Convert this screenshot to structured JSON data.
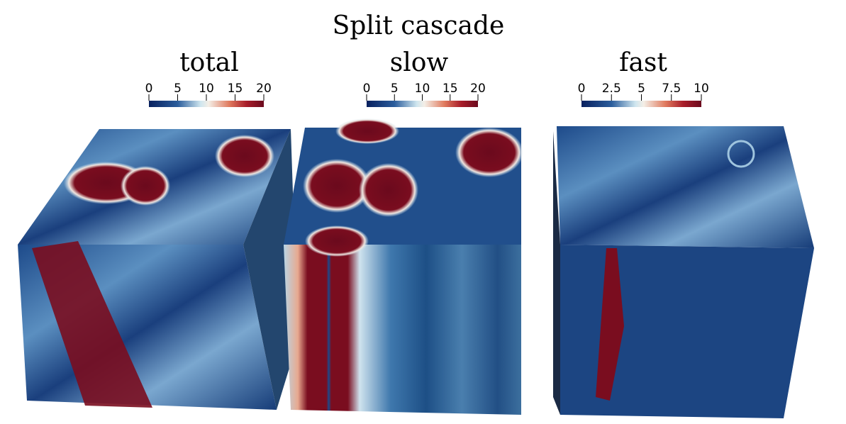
{
  "title": "Split cascade",
  "panels": [
    {
      "title": "total",
      "colorbar": {
        "lim": [
          0,
          20
        ],
        "ticks": [
          0,
          5,
          10,
          15,
          20
        ]
      }
    },
    {
      "title": "slow",
      "colorbar": {
        "lim": [
          0,
          20
        ],
        "ticks": [
          0,
          5,
          10,
          15,
          20
        ]
      }
    },
    {
      "title": "fast",
      "colorbar": {
        "lim": [
          0,
          10
        ],
        "ticks": [
          0,
          2.5,
          5,
          7.5,
          10
        ]
      }
    }
  ]
}
